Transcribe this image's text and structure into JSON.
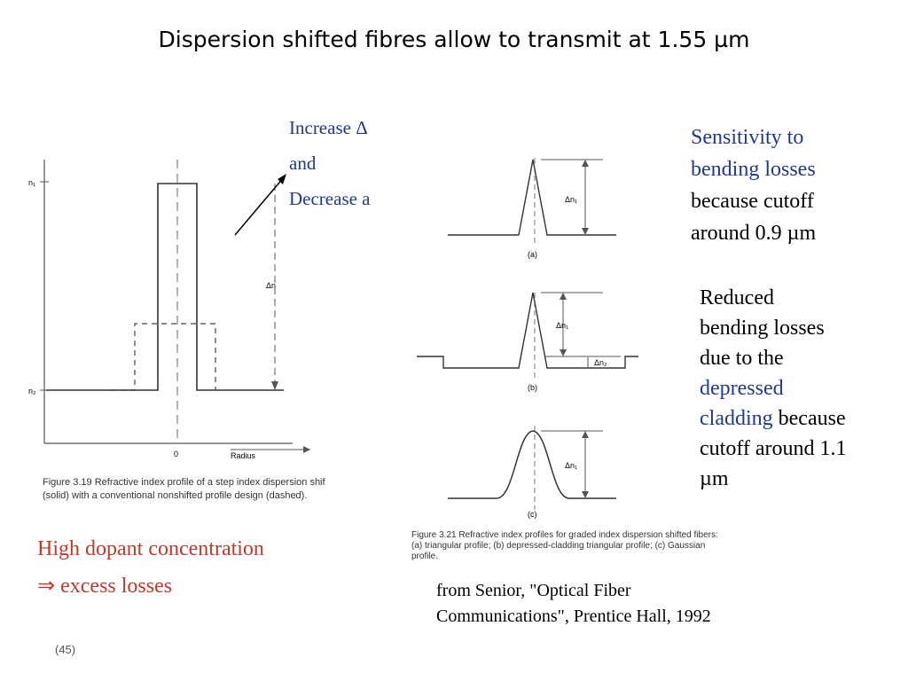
{
  "slide": {
    "title": "Dispersion shifted fibres allow to transmit at 1.55 µm",
    "page_number": "(45)"
  },
  "annotation_increase": {
    "line1": "Increase Δ",
    "line2": "and",
    "line3": "Decrease a"
  },
  "sensitivity": {
    "line1": "Sensitivity to",
    "line2": "bending losses",
    "line3": "because cutoff",
    "line4": "around 0.9 µm"
  },
  "reduced": {
    "line1": "Reduced",
    "line2": "bending losses",
    "line3": "due to the",
    "line4_blue": "depressed",
    "line5_blue": "cladding",
    "line5_rest": " because",
    "line6": "cutoff around 1.1",
    "line7": "µm"
  },
  "high_dopant": {
    "line1": "High dopant concentration",
    "line2": "⇒ excess losses"
  },
  "source": {
    "line1": "from Senior, \"Optical Fiber",
    "line2": "Communications\", Prentice Hall, 1992"
  },
  "figure_319": {
    "caption_line1": "Figure 3.19 Refractive index profile of a step index dispersion shif",
    "caption_line2": "(solid) with a conventional nonshifted profile design (dashed).",
    "n1_label": "n₁",
    "n2_label": "n₂",
    "delta_n_label": "Δn",
    "zero_label": "0",
    "radius_label": "Radius"
  },
  "figure_321": {
    "caption_line1": "Figure 3.21 Refractive index profiles for graded index dispersion shifted fibers:",
    "caption_line2": "(a) triangular profile; (b) depressed-cladding triangular profile; (c) Gaussian",
    "caption_line3": "profile.",
    "label_a": "(a)",
    "label_b": "(b)",
    "label_c": "(c)",
    "dn1_a": "Δn₁",
    "dn1_b": "Δn₁",
    "dn2_b": "Δn₂",
    "dn1_c": "Δn₁"
  }
}
